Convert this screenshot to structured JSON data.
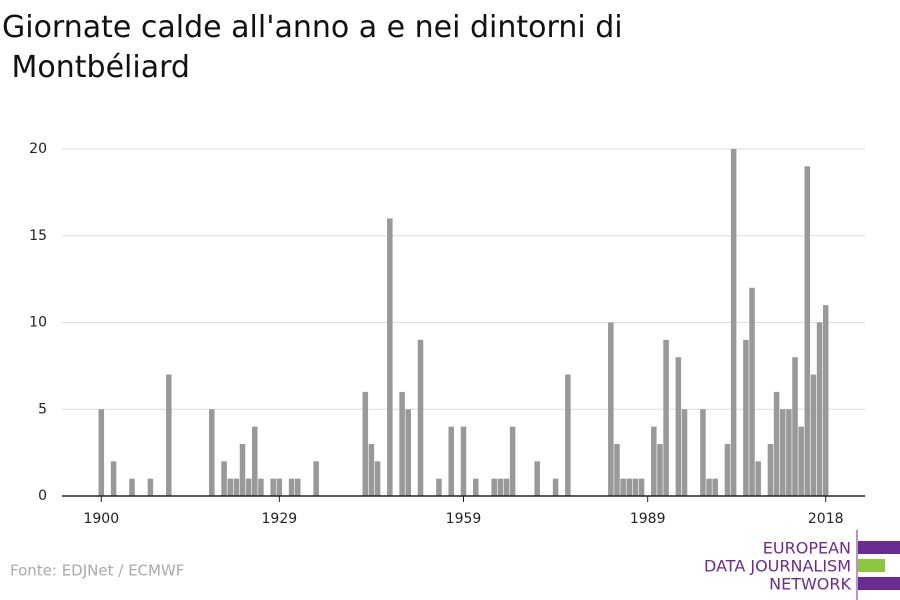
{
  "chart_data": {
    "type": "bar",
    "title": "Giornate calde all'anno a e nei dintorni di Montbéliard",
    "source": "Fonte: EDJNet / ECMWF",
    "logo": [
      "EUROPEAN",
      "DATA JOURNALISM",
      "NETWORK"
    ],
    "color": "#999999",
    "x": [
      1900,
      1902,
      1905,
      1908,
      1911,
      1918,
      1920,
      1921,
      1922,
      1923,
      1924,
      1925,
      1926,
      1928,
      1929,
      1931,
      1932,
      1935,
      1943,
      1944,
      1945,
      1947,
      1949,
      1950,
      1952,
      1955,
      1957,
      1959,
      1961,
      1964,
      1965,
      1966,
      1967,
      1971,
      1974,
      1976,
      1983,
      1984,
      1985,
      1986,
      1987,
      1988,
      1990,
      1991,
      1992,
      1994,
      1995,
      1998,
      1999,
      2000,
      2002,
      2003,
      2005,
      2006,
      2007,
      2009,
      2010,
      2011,
      2012,
      2013,
      2014,
      2015,
      2016,
      2017,
      2018
    ],
    "values": [
      5,
      2,
      1,
      1,
      7,
      5,
      2,
      1,
      1,
      3,
      1,
      4,
      1,
      1,
      1,
      1,
      1,
      2,
      6,
      3,
      2,
      16,
      6,
      5,
      9,
      1,
      4,
      4,
      1,
      1,
      1,
      1,
      4,
      2,
      1,
      7,
      10,
      3,
      1,
      1,
      1,
      1,
      4,
      3,
      9,
      8,
      5,
      5,
      1,
      1,
      3,
      20,
      9,
      12,
      2,
      3,
      6,
      5,
      5,
      8,
      4,
      19,
      7,
      10,
      11
    ],
    "xlim": [
      1893.6,
      2024.4
    ],
    "xticks": [
      1900,
      1929,
      1959,
      1989,
      2018
    ],
    "ylim": [
      0,
      20
    ],
    "yticks": [
      0,
      5,
      10,
      15,
      20
    ],
    "grid": true
  }
}
